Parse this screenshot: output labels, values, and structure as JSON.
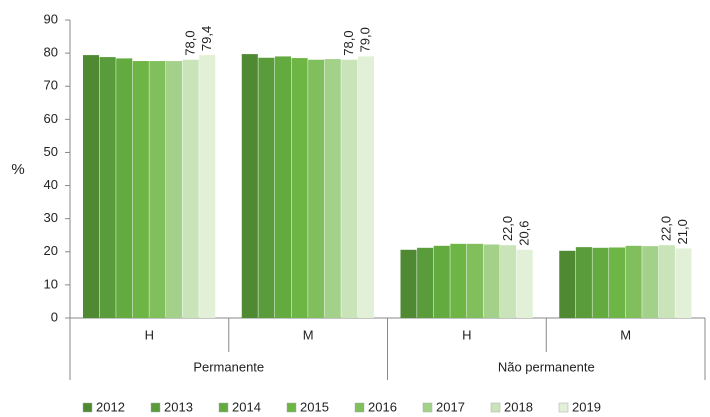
{
  "chart_data": {
    "type": "bar",
    "y_label": "%",
    "groups": [
      {
        "name": "Permanente",
        "categories": [
          "H",
          "M"
        ]
      },
      {
        "name": "Não permanente",
        "categories": [
          "H",
          "M"
        ]
      }
    ],
    "categories": [
      "H",
      "M",
      "H",
      "M"
    ],
    "ylim": [
      0,
      90
    ],
    "yticks": [
      0,
      10,
      20,
      30,
      40,
      50,
      60,
      70,
      80,
      90
    ],
    "grid": false,
    "legend": "bottom",
    "series": [
      {
        "name": "2012",
        "color": "#4f8a33",
        "values": [
          79.4,
          79.7,
          20.6,
          20.3
        ]
      },
      {
        "name": "2013",
        "color": "#5a9b3c",
        "values": [
          78.8,
          78.6,
          21.2,
          21.4
        ]
      },
      {
        "name": "2014",
        "color": "#63aa3f",
        "values": [
          78.4,
          79.0,
          21.8,
          21.2
        ]
      },
      {
        "name": "2015",
        "color": "#6db544",
        "values": [
          77.6,
          78.5,
          22.4,
          21.3
        ]
      },
      {
        "name": "2016",
        "color": "#80bf5b",
        "values": [
          77.6,
          78.0,
          22.4,
          21.8
        ]
      },
      {
        "name": "2017",
        "color": "#a4d18a",
        "values": [
          77.6,
          78.2,
          22.2,
          21.7
        ]
      },
      {
        "name": "2018",
        "color": "#c9e4b8",
        "values": [
          78.0,
          78.0,
          22.0,
          22.0
        ],
        "value_labels": [
          "78,0",
          "78,0",
          "22,0",
          "22,0"
        ]
      },
      {
        "name": "2019",
        "color": "#e2f0d7",
        "values": [
          79.4,
          79.0,
          20.6,
          21.0
        ],
        "value_labels": [
          "79,4",
          "79,0",
          "20,6",
          "21,0"
        ]
      }
    ]
  }
}
